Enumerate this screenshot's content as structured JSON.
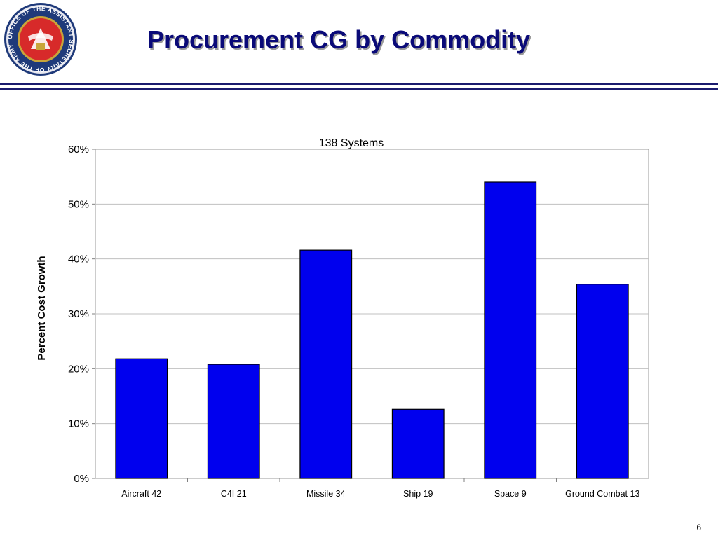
{
  "slide": {
    "title": "Procurement CG by Commodity",
    "page_number": "6",
    "seal": {
      "outer_text": "OFFICE OF THE ASSISTANT SECRETARY OF THE ARMY",
      "colors": {
        "ring": "#1f3a7a",
        "center": "#d72a2a",
        "gold": "#c9a53a"
      }
    },
    "rule_color": "#1a1a6e",
    "title_color": "#0a0a78"
  },
  "chart_data": {
    "type": "bar",
    "title": "138 Systems",
    "xlabel": "",
    "ylabel": "Percent Cost Growth",
    "categories": [
      "Aircraft 42",
      "C4I 21",
      "Missile 34",
      "Ship 19",
      "Space 9",
      "Ground Combat 13"
    ],
    "values": [
      21.8,
      20.8,
      41.6,
      12.6,
      54.0,
      35.4
    ],
    "ylim": [
      0,
      60
    ],
    "yticks": [
      "0%",
      "10%",
      "20%",
      "30%",
      "40%",
      "50%",
      "60%"
    ],
    "grid": true,
    "legend": "none",
    "bar_color": "#0000ee"
  }
}
